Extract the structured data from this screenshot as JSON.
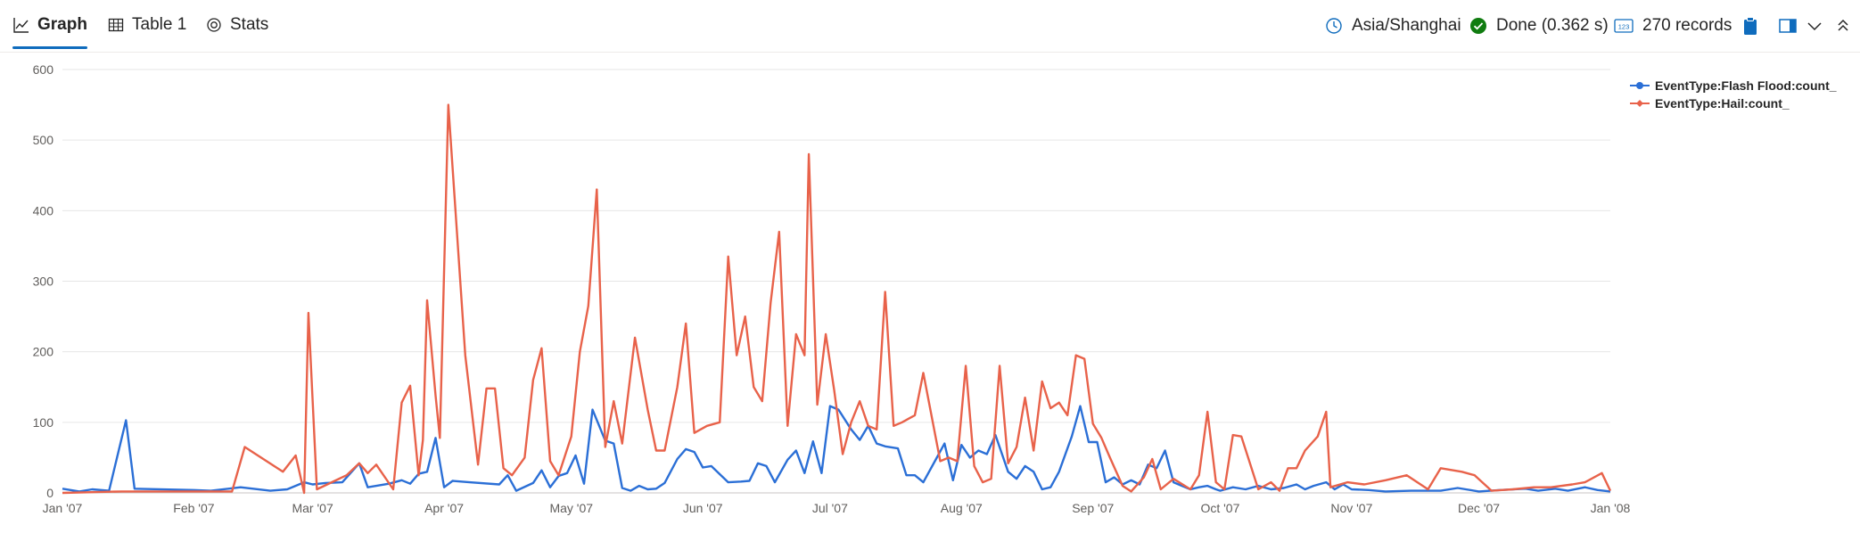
{
  "tabs": [
    {
      "label": "Graph",
      "icon": "line-chart-icon",
      "active": true
    },
    {
      "label": "Table 1",
      "icon": "table-icon",
      "active": false
    },
    {
      "label": "Stats",
      "icon": "stats-icon",
      "active": false
    }
  ],
  "status": {
    "timezone": "Asia/Shanghai",
    "done_text": "Done (0.362 s)",
    "records_text": "270 records"
  },
  "colors": {
    "flash_flood": "#2b6fd6",
    "hail": "#e8624a",
    "grid": "#e6e6e6",
    "accent": "#0f6cbd",
    "done_green": "#107c10"
  },
  "chart_data": {
    "type": "line",
    "grid": "horizontal",
    "legend_placement": "top-right",
    "ylim": [
      0,
      600
    ],
    "y_ticks": [
      0,
      100,
      200,
      300,
      400,
      500,
      600
    ],
    "xlim": [
      "2007-01-01",
      "2008-01-01"
    ],
    "x_ticks": [
      {
        "date": "2007-01-01",
        "label": "Jan '07"
      },
      {
        "date": "2007-02-01",
        "label": "Feb '07"
      },
      {
        "date": "2007-03-01",
        "label": "Mar '07"
      },
      {
        "date": "2007-04-01",
        "label": "Apr '07"
      },
      {
        "date": "2007-05-01",
        "label": "May '07"
      },
      {
        "date": "2007-06-01",
        "label": "Jun '07"
      },
      {
        "date": "2007-07-01",
        "label": "Jul '07"
      },
      {
        "date": "2007-08-01",
        "label": "Aug '07"
      },
      {
        "date": "2007-09-01",
        "label": "Sep '07"
      },
      {
        "date": "2007-10-01",
        "label": "Oct '07"
      },
      {
        "date": "2007-11-01",
        "label": "Nov '07"
      },
      {
        "date": "2007-12-01",
        "label": "Dec '07"
      },
      {
        "date": "2008-01-01",
        "label": "Jan '08"
      }
    ],
    "series": [
      {
        "name": "EventType:Flash Flood:count_",
        "color": "#2b6fd6",
        "points": [
          [
            "2007-01-01",
            6
          ],
          [
            "2007-01-05",
            2
          ],
          [
            "2007-01-08",
            5
          ],
          [
            "2007-01-12",
            3
          ],
          [
            "2007-01-16",
            103
          ],
          [
            "2007-01-18",
            6
          ],
          [
            "2007-02-01",
            4
          ],
          [
            "2007-02-05",
            3
          ],
          [
            "2007-02-12",
            8
          ],
          [
            "2007-02-19",
            3
          ],
          [
            "2007-02-23",
            5
          ],
          [
            "2007-02-27",
            15
          ],
          [
            "2007-03-01",
            12
          ],
          [
            "2007-03-04",
            14
          ],
          [
            "2007-03-08",
            15
          ],
          [
            "2007-03-12",
            42
          ],
          [
            "2007-03-14",
            8
          ],
          [
            "2007-03-19",
            13
          ],
          [
            "2007-03-22",
            18
          ],
          [
            "2007-03-24",
            13
          ],
          [
            "2007-03-26",
            27
          ],
          [
            "2007-03-28",
            30
          ],
          [
            "2007-03-30",
            78
          ],
          [
            "2007-04-01",
            8
          ],
          [
            "2007-04-03",
            17
          ],
          [
            "2007-04-07",
            15
          ],
          [
            "2007-04-14",
            12
          ],
          [
            "2007-04-16",
            25
          ],
          [
            "2007-04-18",
            3
          ],
          [
            "2007-04-22",
            14
          ],
          [
            "2007-04-24",
            32
          ],
          [
            "2007-04-26",
            8
          ],
          [
            "2007-04-28",
            24
          ],
          [
            "2007-04-30",
            28
          ],
          [
            "2007-05-02",
            53
          ],
          [
            "2007-05-04",
            13
          ],
          [
            "2007-05-06",
            118
          ],
          [
            "2007-05-09",
            74
          ],
          [
            "2007-05-11",
            70
          ],
          [
            "2007-05-13",
            7
          ],
          [
            "2007-05-15",
            3
          ],
          [
            "2007-05-17",
            10
          ],
          [
            "2007-05-19",
            5
          ],
          [
            "2007-05-21",
            6
          ],
          [
            "2007-05-23",
            14
          ],
          [
            "2007-05-26",
            48
          ],
          [
            "2007-05-28",
            62
          ],
          [
            "2007-05-30",
            58
          ],
          [
            "2007-06-01",
            36
          ],
          [
            "2007-06-03",
            38
          ],
          [
            "2007-06-07",
            15
          ],
          [
            "2007-06-10",
            16
          ],
          [
            "2007-06-12",
            17
          ],
          [
            "2007-06-14",
            42
          ],
          [
            "2007-06-16",
            38
          ],
          [
            "2007-06-18",
            15
          ],
          [
            "2007-06-21",
            47
          ],
          [
            "2007-06-23",
            60
          ],
          [
            "2007-06-25",
            28
          ],
          [
            "2007-06-27",
            73
          ],
          [
            "2007-06-29",
            28
          ],
          [
            "2007-07-01",
            123
          ],
          [
            "2007-07-03",
            118
          ],
          [
            "2007-07-06",
            90
          ],
          [
            "2007-07-08",
            75
          ],
          [
            "2007-07-10",
            95
          ],
          [
            "2007-07-12",
            70
          ],
          [
            "2007-07-14",
            66
          ],
          [
            "2007-07-17",
            63
          ],
          [
            "2007-07-19",
            25
          ],
          [
            "2007-07-21",
            25
          ],
          [
            "2007-07-23",
            15
          ],
          [
            "2007-07-26",
            48
          ],
          [
            "2007-07-28",
            70
          ],
          [
            "2007-07-30",
            18
          ],
          [
            "2007-08-01",
            68
          ],
          [
            "2007-08-03",
            50
          ],
          [
            "2007-08-05",
            60
          ],
          [
            "2007-08-07",
            55
          ],
          [
            "2007-08-09",
            82
          ],
          [
            "2007-08-12",
            30
          ],
          [
            "2007-08-14",
            20
          ],
          [
            "2007-08-16",
            38
          ],
          [
            "2007-08-18",
            30
          ],
          [
            "2007-08-20",
            5
          ],
          [
            "2007-08-22",
            8
          ],
          [
            "2007-08-24",
            30
          ],
          [
            "2007-08-27",
            80
          ],
          [
            "2007-08-29",
            123
          ],
          [
            "2007-08-31",
            72
          ],
          [
            "2007-09-02",
            72
          ],
          [
            "2007-09-04",
            15
          ],
          [
            "2007-09-06",
            22
          ],
          [
            "2007-09-08",
            12
          ],
          [
            "2007-09-10",
            18
          ],
          [
            "2007-09-12",
            12
          ],
          [
            "2007-09-14",
            40
          ],
          [
            "2007-09-16",
            35
          ],
          [
            "2007-09-18",
            60
          ],
          [
            "2007-09-20",
            15
          ],
          [
            "2007-09-22",
            10
          ],
          [
            "2007-09-24",
            5
          ],
          [
            "2007-09-26",
            8
          ],
          [
            "2007-09-28",
            10
          ],
          [
            "2007-09-30",
            5
          ],
          [
            "2007-10-01",
            3
          ],
          [
            "2007-10-04",
            8
          ],
          [
            "2007-10-07",
            5
          ],
          [
            "2007-10-10",
            10
          ],
          [
            "2007-10-13",
            5
          ],
          [
            "2007-10-16",
            7
          ],
          [
            "2007-10-19",
            12
          ],
          [
            "2007-10-21",
            5
          ],
          [
            "2007-10-23",
            10
          ],
          [
            "2007-10-26",
            15
          ],
          [
            "2007-10-28",
            5
          ],
          [
            "2007-10-30",
            12
          ],
          [
            "2007-11-01",
            5
          ],
          [
            "2007-11-05",
            4
          ],
          [
            "2007-11-09",
            2
          ],
          [
            "2007-11-15",
            3
          ],
          [
            "2007-11-22",
            3
          ],
          [
            "2007-11-26",
            7
          ],
          [
            "2007-12-01",
            2
          ],
          [
            "2007-12-06",
            4
          ],
          [
            "2007-12-12",
            6
          ],
          [
            "2007-12-15",
            3
          ],
          [
            "2007-12-19",
            6
          ],
          [
            "2007-12-22",
            3
          ],
          [
            "2007-12-26",
            8
          ],
          [
            "2007-12-29",
            4
          ],
          [
            "2008-01-01",
            2
          ]
        ]
      },
      {
        "name": "EventType:Hail:count_",
        "color": "#e8624a",
        "points": [
          [
            "2007-01-01",
            0
          ],
          [
            "2007-01-08",
            1
          ],
          [
            "2007-01-15",
            2
          ],
          [
            "2007-02-10",
            2
          ],
          [
            "2007-02-13",
            65
          ],
          [
            "2007-02-22",
            30
          ],
          [
            "2007-02-25",
            53
          ],
          [
            "2007-02-27",
            0
          ],
          [
            "2007-02-28",
            255
          ],
          [
            "2007-03-02",
            5
          ],
          [
            "2007-03-09",
            25
          ],
          [
            "2007-03-12",
            42
          ],
          [
            "2007-03-14",
            28
          ],
          [
            "2007-03-16",
            40
          ],
          [
            "2007-03-20",
            5
          ],
          [
            "2007-03-22",
            128
          ],
          [
            "2007-03-24",
            152
          ],
          [
            "2007-03-26",
            25
          ],
          [
            "2007-03-27",
            75
          ],
          [
            "2007-03-28",
            273
          ],
          [
            "2007-03-30",
            138
          ],
          [
            "2007-03-31",
            78
          ],
          [
            "2007-04-02",
            550
          ],
          [
            "2007-04-06",
            195
          ],
          [
            "2007-04-09",
            40
          ],
          [
            "2007-04-11",
            148
          ],
          [
            "2007-04-13",
            148
          ],
          [
            "2007-04-15",
            35
          ],
          [
            "2007-04-17",
            25
          ],
          [
            "2007-04-20",
            50
          ],
          [
            "2007-04-22",
            160
          ],
          [
            "2007-04-24",
            205
          ],
          [
            "2007-04-26",
            45
          ],
          [
            "2007-04-28",
            25
          ],
          [
            "2007-05-01",
            80
          ],
          [
            "2007-05-03",
            200
          ],
          [
            "2007-05-05",
            265
          ],
          [
            "2007-05-07",
            430
          ],
          [
            "2007-05-09",
            65
          ],
          [
            "2007-05-11",
            130
          ],
          [
            "2007-05-13",
            70
          ],
          [
            "2007-05-16",
            220
          ],
          [
            "2007-05-19",
            118
          ],
          [
            "2007-05-21",
            60
          ],
          [
            "2007-05-23",
            60
          ],
          [
            "2007-05-26",
            150
          ],
          [
            "2007-05-28",
            240
          ],
          [
            "2007-05-30",
            85
          ],
          [
            "2007-06-02",
            95
          ],
          [
            "2007-06-05",
            100
          ],
          [
            "2007-06-07",
            335
          ],
          [
            "2007-06-09",
            195
          ],
          [
            "2007-06-11",
            250
          ],
          [
            "2007-06-13",
            150
          ],
          [
            "2007-06-15",
            130
          ],
          [
            "2007-06-17",
            270
          ],
          [
            "2007-06-19",
            370
          ],
          [
            "2007-06-21",
            95
          ],
          [
            "2007-06-23",
            225
          ],
          [
            "2007-06-25",
            195
          ],
          [
            "2007-06-26",
            480
          ],
          [
            "2007-06-28",
            125
          ],
          [
            "2007-06-30",
            225
          ],
          [
            "2007-07-02",
            145
          ],
          [
            "2007-07-04",
            55
          ],
          [
            "2007-07-06",
            100
          ],
          [
            "2007-07-08",
            130
          ],
          [
            "2007-07-10",
            95
          ],
          [
            "2007-07-12",
            90
          ],
          [
            "2007-07-14",
            285
          ],
          [
            "2007-07-16",
            95
          ],
          [
            "2007-07-18",
            100
          ],
          [
            "2007-07-21",
            110
          ],
          [
            "2007-07-23",
            170
          ],
          [
            "2007-07-27",
            45
          ],
          [
            "2007-07-29",
            50
          ],
          [
            "2007-07-31",
            45
          ],
          [
            "2007-08-02",
            180
          ],
          [
            "2007-08-04",
            38
          ],
          [
            "2007-08-06",
            15
          ],
          [
            "2007-08-08",
            20
          ],
          [
            "2007-08-10",
            180
          ],
          [
            "2007-08-12",
            42
          ],
          [
            "2007-08-14",
            65
          ],
          [
            "2007-08-16",
            135
          ],
          [
            "2007-08-18",
            60
          ],
          [
            "2007-08-20",
            158
          ],
          [
            "2007-08-22",
            120
          ],
          [
            "2007-08-24",
            128
          ],
          [
            "2007-08-26",
            110
          ],
          [
            "2007-08-28",
            195
          ],
          [
            "2007-08-30",
            190
          ],
          [
            "2007-09-01",
            98
          ],
          [
            "2007-09-03",
            78
          ],
          [
            "2007-09-05",
            50
          ],
          [
            "2007-09-08",
            10
          ],
          [
            "2007-09-10",
            2
          ],
          [
            "2007-09-13",
            22
          ],
          [
            "2007-09-15",
            48
          ],
          [
            "2007-09-17",
            5
          ],
          [
            "2007-09-20",
            20
          ],
          [
            "2007-09-24",
            5
          ],
          [
            "2007-09-26",
            25
          ],
          [
            "2007-09-28",
            115
          ],
          [
            "2007-09-30",
            15
          ],
          [
            "2007-10-02",
            5
          ],
          [
            "2007-10-04",
            82
          ],
          [
            "2007-10-06",
            80
          ],
          [
            "2007-10-10",
            5
          ],
          [
            "2007-10-13",
            15
          ],
          [
            "2007-10-15",
            3
          ],
          [
            "2007-10-17",
            35
          ],
          [
            "2007-10-19",
            35
          ],
          [
            "2007-10-21",
            60
          ],
          [
            "2007-10-24",
            80
          ],
          [
            "2007-10-26",
            115
          ],
          [
            "2007-10-27",
            8
          ],
          [
            "2007-10-31",
            15
          ],
          [
            "2007-11-04",
            12
          ],
          [
            "2007-11-09",
            18
          ],
          [
            "2007-11-14",
            25
          ],
          [
            "2007-11-19",
            5
          ],
          [
            "2007-11-22",
            35
          ],
          [
            "2007-11-27",
            30
          ],
          [
            "2007-11-30",
            25
          ],
          [
            "2007-12-04",
            3
          ],
          [
            "2007-12-09",
            5
          ],
          [
            "2007-12-14",
            8
          ],
          [
            "2007-12-18",
            8
          ],
          [
            "2007-12-23",
            12
          ],
          [
            "2007-12-26",
            15
          ],
          [
            "2007-12-30",
            28
          ],
          [
            "2008-01-01",
            3
          ]
        ]
      }
    ]
  }
}
